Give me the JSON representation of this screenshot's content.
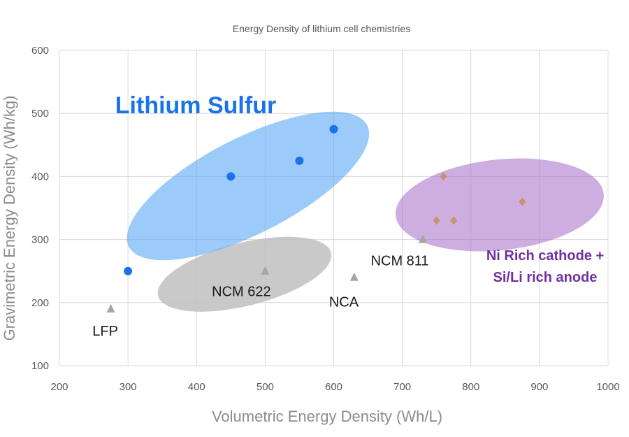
{
  "chart_data": {
    "type": "scatter",
    "title": "Energy Density of lithium cell chemistries",
    "xlabel": "Volumetric  Energy Density (Wh/L)",
    "ylabel": "Gravimetric  Energy  Density  (Wh/kg)",
    "xlim": [
      200,
      1000
    ],
    "ylim": [
      100,
      600
    ],
    "x_ticks": [
      "200",
      "300",
      "400",
      "500",
      "600",
      "700",
      "800",
      "900",
      "1000"
    ],
    "y_ticks": [
      "100",
      "200",
      "300",
      "400",
      "500",
      "600"
    ],
    "grid": true,
    "series": [
      {
        "key": "lithium-sulfur",
        "color": "#1a73e8",
        "marker": "circle",
        "points": [
          {
            "x": 300,
            "y": 250
          },
          {
            "x": 450,
            "y": 400
          },
          {
            "x": 550,
            "y": 425
          },
          {
            "x": 600,
            "y": 475
          }
        ]
      },
      {
        "key": "conventional",
        "color": "#a6a6a6",
        "marker": "triangle",
        "points": [
          {
            "x": 275,
            "y": 190,
            "label": "LFP"
          },
          {
            "x": 500,
            "y": 250,
            "label": "NCM 622"
          },
          {
            "x": 630,
            "y": 240,
            "label": "NCA"
          },
          {
            "x": 730,
            "y": 300,
            "label": "NCM 811"
          }
        ]
      },
      {
        "key": "ni-rich",
        "color": "#c8926a",
        "marker": "diamond",
        "points": [
          {
            "x": 750,
            "y": 330
          },
          {
            "x": 760,
            "y": 400
          },
          {
            "x": 775,
            "y": 330
          },
          {
            "x": 875,
            "y": 360
          }
        ]
      }
    ],
    "regions": [
      {
        "key": "lithium-sulfur",
        "label_lines": [
          "Lithium  Sulfur"
        ],
        "color": "#1a73e8"
      },
      {
        "key": "ni-rich",
        "label_lines": [
          "Ni Rich cathode +",
          "Si/Li rich anode"
        ],
        "color": "#7030a0"
      },
      {
        "key": "conventional",
        "label_lines": [],
        "color": "#a6a6a6"
      }
    ]
  }
}
